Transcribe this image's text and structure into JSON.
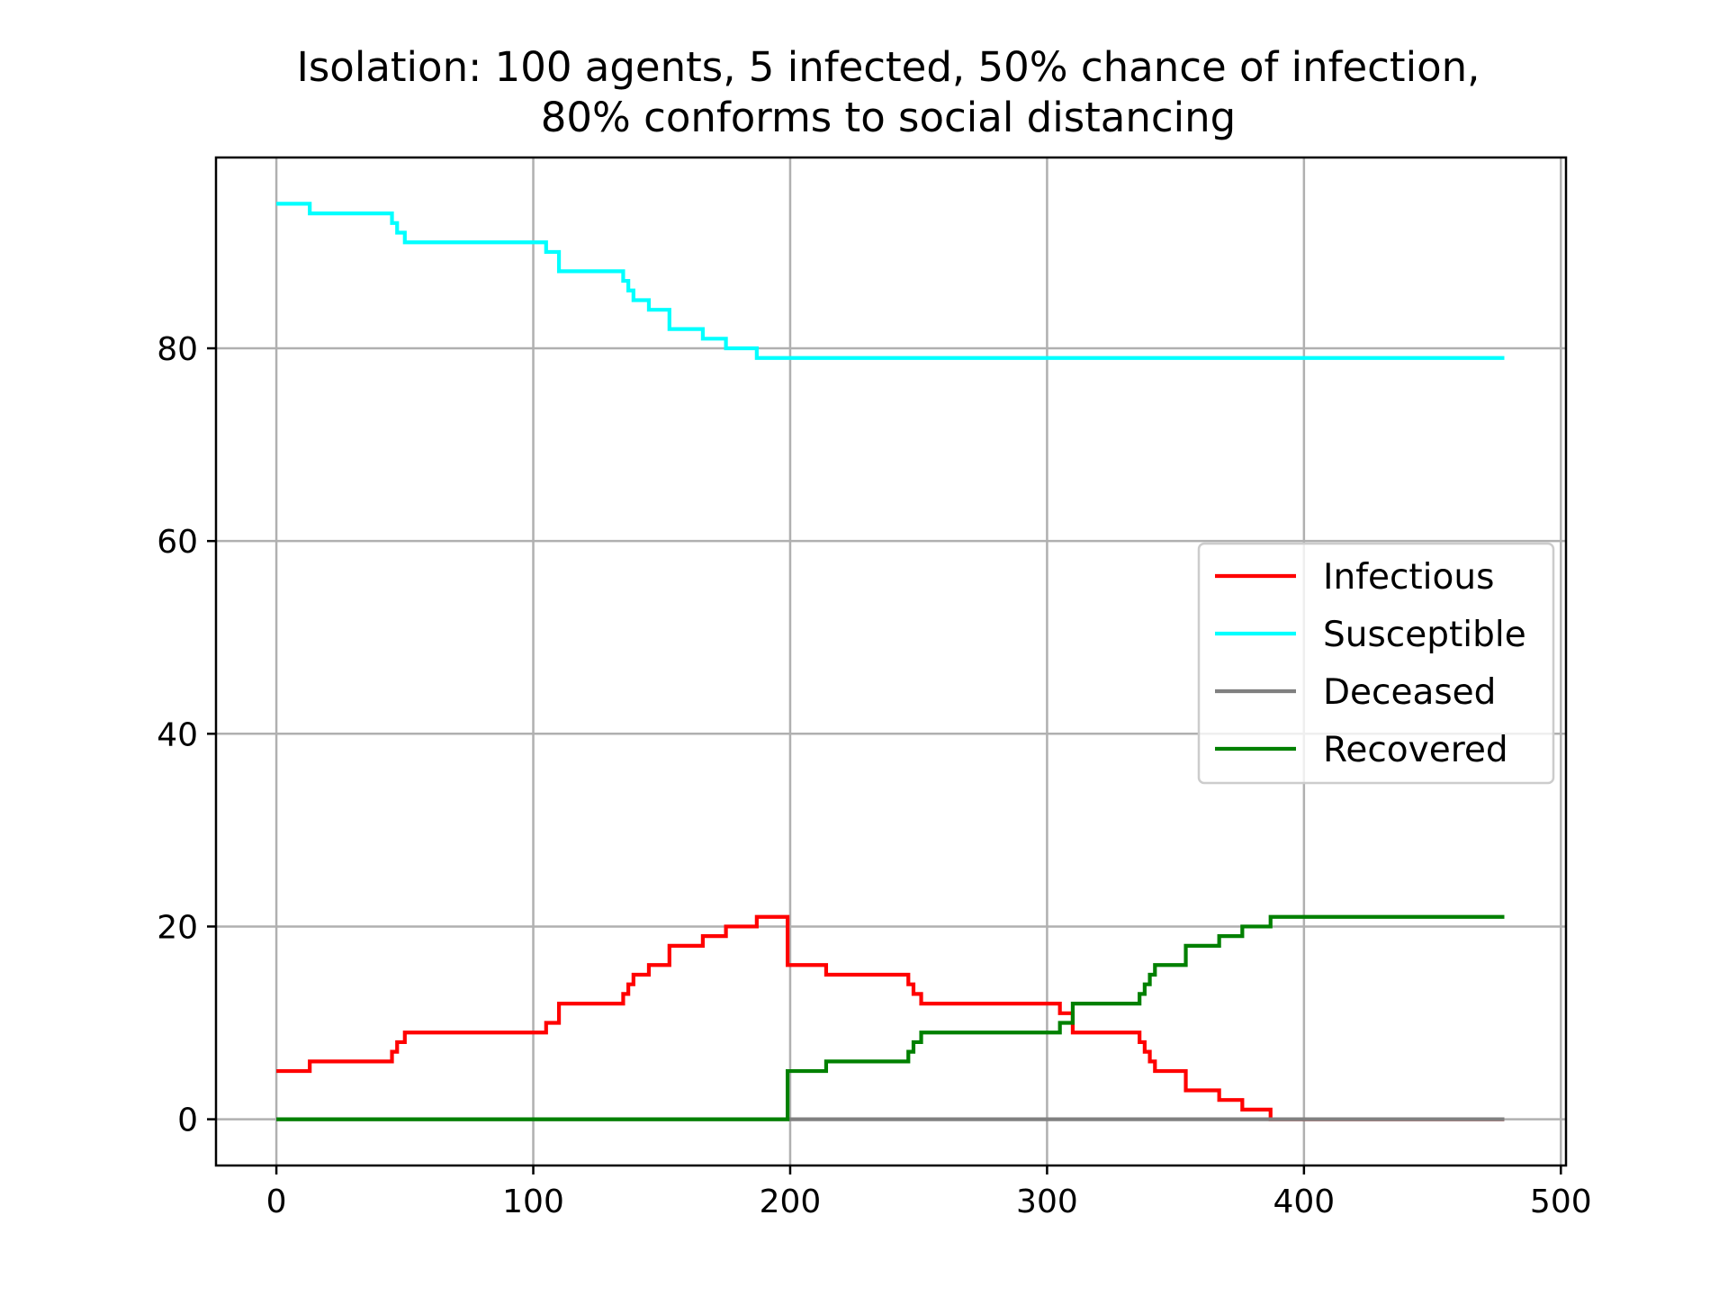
{
  "chart_data": {
    "type": "line",
    "title_lines": [
      "Isolation: 100 agents, 5 infected, 50% chance of infection,",
      "80% conforms to social distancing"
    ],
    "xlabel": "",
    "ylabel": "",
    "xlim": [
      -23.5,
      502
    ],
    "ylim": [
      -4.8,
      99.8
    ],
    "xticks": [
      0,
      100,
      200,
      300,
      400,
      500
    ],
    "yticks": [
      0,
      20,
      40,
      60,
      80
    ],
    "grid": true,
    "legend_position": "center-right",
    "series": [
      {
        "name": "Infectious",
        "color": "#ff0000",
        "points": [
          [
            0,
            5
          ],
          [
            13,
            5
          ],
          [
            13,
            6
          ],
          [
            45,
            6
          ],
          [
            45,
            7
          ],
          [
            47,
            7
          ],
          [
            47,
            8
          ],
          [
            50,
            8
          ],
          [
            50,
            9
          ],
          [
            105,
            9
          ],
          [
            105,
            10
          ],
          [
            110,
            10
          ],
          [
            110,
            12
          ],
          [
            135,
            12
          ],
          [
            135,
            13
          ],
          [
            137,
            13
          ],
          [
            137,
            14
          ],
          [
            139,
            14
          ],
          [
            139,
            15
          ],
          [
            145,
            15
          ],
          [
            145,
            16
          ],
          [
            153,
            16
          ],
          [
            153,
            18
          ],
          [
            166,
            18
          ],
          [
            166,
            19
          ],
          [
            175,
            19
          ],
          [
            175,
            20
          ],
          [
            187,
            20
          ],
          [
            187,
            21
          ],
          [
            199,
            21
          ],
          [
            199,
            16
          ],
          [
            214,
            16
          ],
          [
            214,
            15
          ],
          [
            246,
            15
          ],
          [
            246,
            14
          ],
          [
            248,
            14
          ],
          [
            248,
            13
          ],
          [
            251,
            13
          ],
          [
            251,
            12
          ],
          [
            305,
            12
          ],
          [
            305,
            11
          ],
          [
            310,
            11
          ],
          [
            310,
            9
          ],
          [
            336,
            9
          ],
          [
            336,
            8
          ],
          [
            338,
            8
          ],
          [
            338,
            7
          ],
          [
            340,
            7
          ],
          [
            340,
            6
          ],
          [
            342,
            6
          ],
          [
            342,
            5
          ],
          [
            354,
            5
          ],
          [
            354,
            3
          ],
          [
            367,
            3
          ],
          [
            367,
            2
          ],
          [
            376,
            2
          ],
          [
            376,
            1
          ],
          [
            387,
            1
          ],
          [
            387,
            0
          ],
          [
            478,
            0
          ]
        ]
      },
      {
        "name": "Susceptible",
        "color": "#00ffff",
        "points": [
          [
            0,
            95
          ],
          [
            13,
            95
          ],
          [
            13,
            94
          ],
          [
            45,
            94
          ],
          [
            45,
            93
          ],
          [
            47,
            93
          ],
          [
            47,
            92
          ],
          [
            50,
            92
          ],
          [
            50,
            91
          ],
          [
            105,
            91
          ],
          [
            105,
            90
          ],
          [
            110,
            90
          ],
          [
            110,
            88
          ],
          [
            135,
            88
          ],
          [
            135,
            87
          ],
          [
            137,
            87
          ],
          [
            137,
            86
          ],
          [
            139,
            86
          ],
          [
            139,
            85
          ],
          [
            145,
            85
          ],
          [
            145,
            84
          ],
          [
            153,
            84
          ],
          [
            153,
            82
          ],
          [
            166,
            82
          ],
          [
            166,
            81
          ],
          [
            175,
            81
          ],
          [
            175,
            80
          ],
          [
            187,
            80
          ],
          [
            187,
            79
          ],
          [
            478,
            79
          ]
        ]
      },
      {
        "name": "Deceased",
        "color": "#808080",
        "points": [
          [
            0,
            0
          ],
          [
            478,
            0
          ]
        ]
      },
      {
        "name": "Recovered",
        "color": "#008000",
        "points": [
          [
            0,
            0
          ],
          [
            199,
            0
          ],
          [
            199,
            5
          ],
          [
            214,
            5
          ],
          [
            214,
            6
          ],
          [
            246,
            6
          ],
          [
            246,
            7
          ],
          [
            248,
            7
          ],
          [
            248,
            8
          ],
          [
            251,
            8
          ],
          [
            251,
            9
          ],
          [
            305,
            9
          ],
          [
            305,
            10
          ],
          [
            310,
            10
          ],
          [
            310,
            12
          ],
          [
            336,
            12
          ],
          [
            336,
            13
          ],
          [
            338,
            13
          ],
          [
            338,
            14
          ],
          [
            340,
            14
          ],
          [
            340,
            15
          ],
          [
            342,
            15
          ],
          [
            342,
            16
          ],
          [
            354,
            16
          ],
          [
            354,
            18
          ],
          [
            367,
            18
          ],
          [
            367,
            19
          ],
          [
            376,
            19
          ],
          [
            376,
            20
          ],
          [
            387,
            20
          ],
          [
            387,
            21
          ],
          [
            478,
            21
          ]
        ]
      }
    ]
  }
}
